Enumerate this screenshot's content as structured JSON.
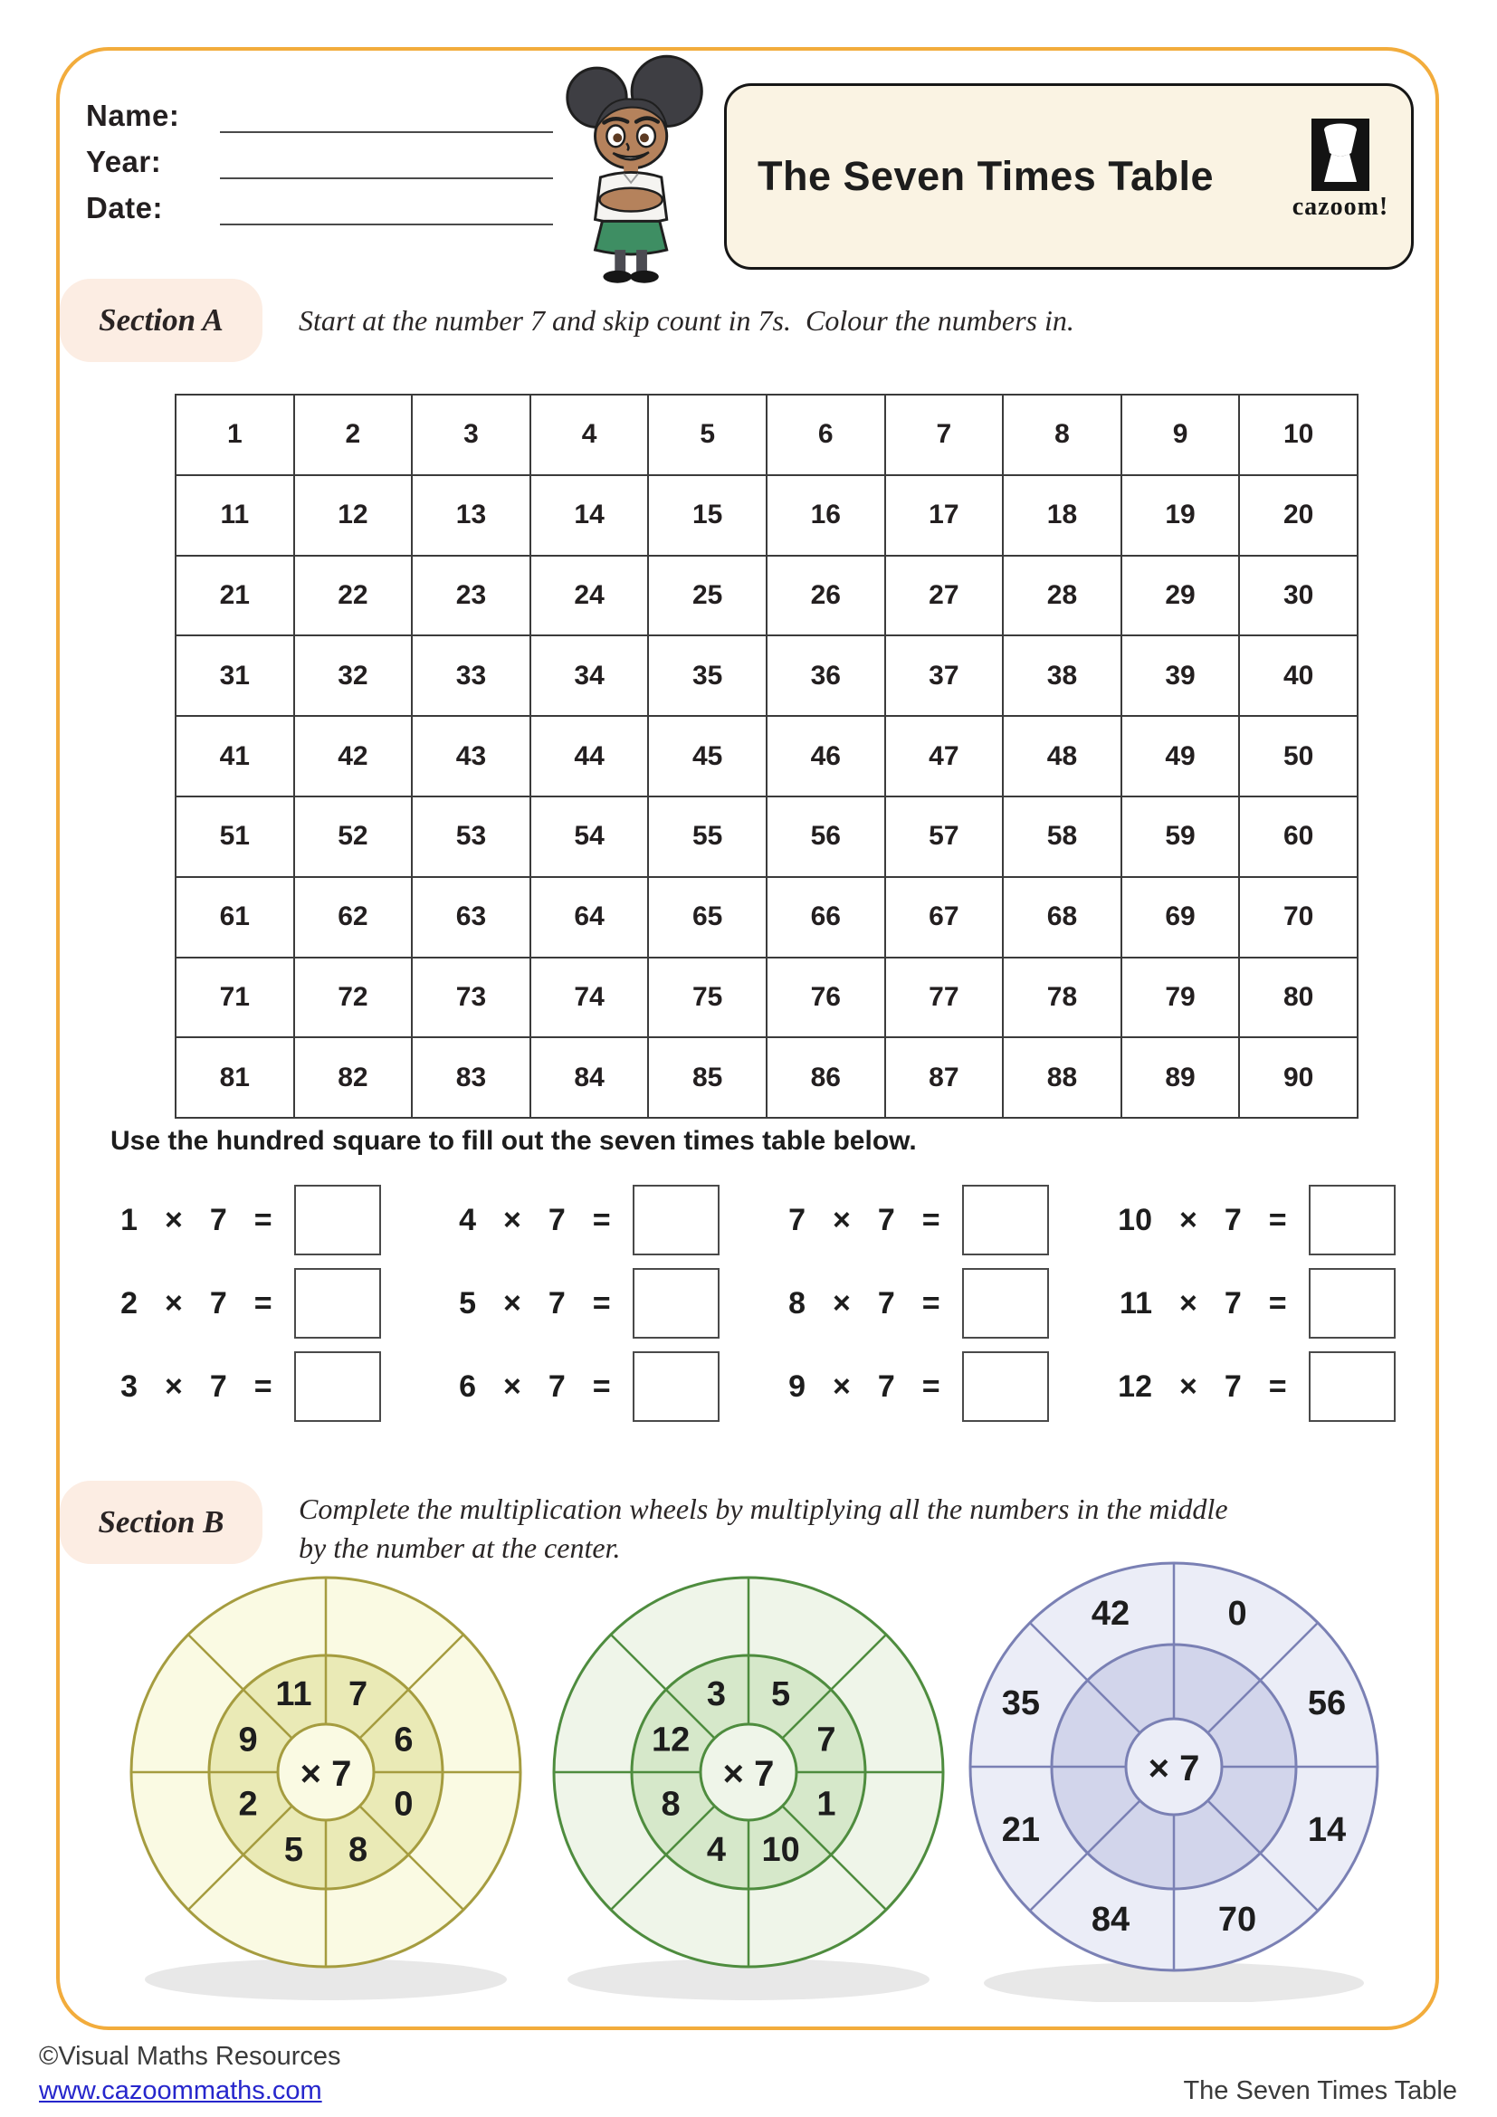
{
  "header": {
    "fields": [
      {
        "label": "Name:"
      },
      {
        "label": "Year:"
      },
      {
        "label": "Date:"
      }
    ],
    "title": "The Seven Times Table",
    "logo": {
      "text": "cazoom!",
      "icon": "djembe-drum-icon"
    }
  },
  "section_a": {
    "label": "Section A",
    "instruction": "Start at the number 7 and skip count in 7s.  Colour the numbers in.",
    "hundred_square": {
      "rows": [
        [
          1,
          2,
          3,
          4,
          5,
          6,
          7,
          8,
          9,
          10
        ],
        [
          11,
          12,
          13,
          14,
          15,
          16,
          17,
          18,
          19,
          20
        ],
        [
          21,
          22,
          23,
          24,
          25,
          26,
          27,
          28,
          29,
          30
        ],
        [
          31,
          32,
          33,
          34,
          35,
          36,
          37,
          38,
          39,
          40
        ],
        [
          41,
          42,
          43,
          44,
          45,
          46,
          47,
          48,
          49,
          50
        ],
        [
          51,
          52,
          53,
          54,
          55,
          56,
          57,
          58,
          59,
          60
        ],
        [
          61,
          62,
          63,
          64,
          65,
          66,
          67,
          68,
          69,
          70
        ],
        [
          71,
          72,
          73,
          74,
          75,
          76,
          77,
          78,
          79,
          80
        ],
        [
          81,
          82,
          83,
          84,
          85,
          86,
          87,
          88,
          89,
          90
        ]
      ]
    },
    "subtask": "Use the hundred square to fill out the seven times table below.",
    "times_table": {
      "operator": "×",
      "equals": "=",
      "multiplier": "7",
      "columns": [
        [
          "1",
          "2",
          "3"
        ],
        [
          "4",
          "5",
          "6"
        ],
        [
          "7",
          "8",
          "9"
        ],
        [
          "10",
          "11",
          "12"
        ]
      ]
    }
  },
  "section_b": {
    "label": "Section B",
    "instruction_lines": [
      "Complete the multiplication wheels by multiplying all the numbers in the middle",
      "by the number at the center."
    ],
    "wheels": [
      {
        "center_label": "× 7",
        "numbers_ring": "inner",
        "numbers": [
          "7",
          "6",
          "0",
          "8",
          "5",
          "2",
          "9",
          "11"
        ],
        "palette": {
          "stroke": "#A59C3F",
          "outer": "#FAFAE3",
          "middle": "#EAEAB6",
          "center": "#FAFAE3"
        }
      },
      {
        "center_label": "× 7",
        "numbers_ring": "inner",
        "numbers": [
          "5",
          "7",
          "1",
          "10",
          "4",
          "8",
          "12",
          "3"
        ],
        "palette": {
          "stroke": "#4E8C3E",
          "outer": "#EFF5E9",
          "middle": "#D6E8CA",
          "center": "#EFF5E9"
        }
      },
      {
        "center_label": "× 7",
        "numbers_ring": "outer",
        "numbers": [
          "0",
          "56",
          "14",
          "70",
          "84",
          "21",
          "35",
          "42"
        ],
        "palette": {
          "stroke": "#7A80B4",
          "outer": "#EBEDF7",
          "middle": "#D2D5EB",
          "center": "#EBEDF7"
        }
      }
    ],
    "shadow_color": "#E8E8E8"
  },
  "footer": {
    "copyright": "©Visual Maths Resources",
    "link": "www.cazoommaths.com",
    "title": "The Seven Times Table"
  },
  "colors": {
    "frame": "#F2AC3C",
    "title_box_bg": "#FAF3E3",
    "section_pill_bg": "#FCEDE3",
    "link": "#2626CC",
    "text": "#231F20"
  }
}
